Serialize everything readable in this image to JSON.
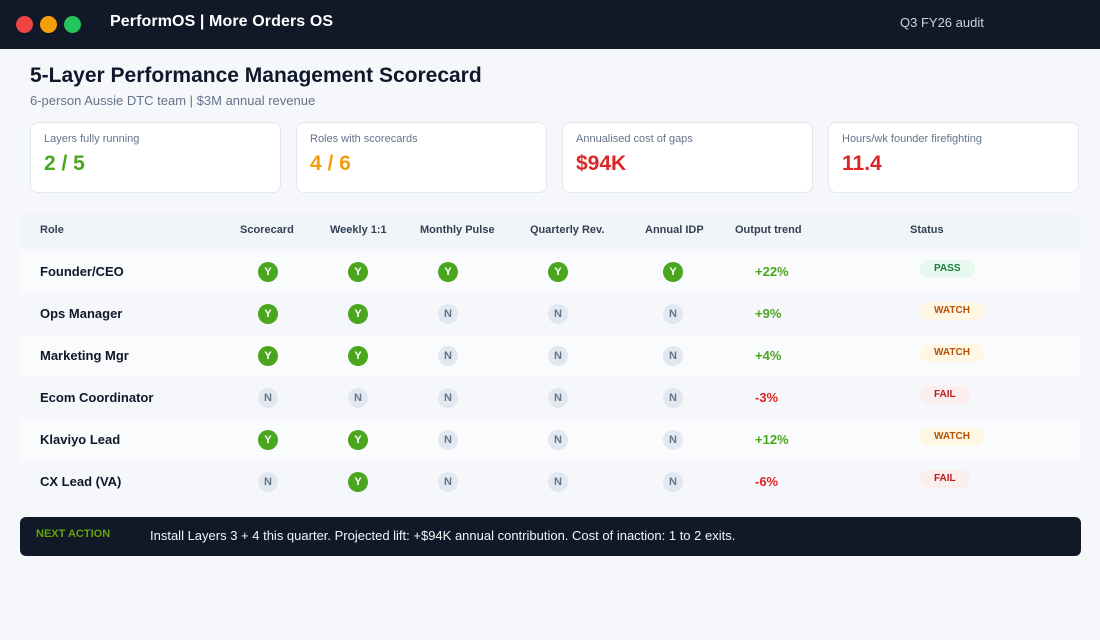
{
  "window": {
    "controls": [
      "close",
      "minimize",
      "maximize"
    ],
    "app_title": "PerformOS  |  More Orders OS",
    "audit_label": "Q3 FY26 audit"
  },
  "header": {
    "title": "5-Layer Performance Management Scorecard",
    "subtitle": "6-person Aussie DTC team  |  $3M annual revenue"
  },
  "kpis": [
    {
      "label": "Layers fully running",
      "value": "2 / 5",
      "color": "#4aa61c"
    },
    {
      "label": "Roles with scorecards",
      "value": "4 / 6",
      "color": "#f59e0b"
    },
    {
      "label": "Annualised cost of gaps",
      "value": "$94K",
      "color": "#dc2626"
    },
    {
      "label": "Hours/wk founder firefighting",
      "value": "11.4",
      "color": "#dc2626"
    }
  ],
  "table": {
    "columns": [
      "Role",
      "Scorecard",
      "Weekly 1:1",
      "Monthly Pulse",
      "Quarterly Rev.",
      "Annual IDP",
      "Output trend",
      "Status"
    ],
    "rows": [
      {
        "role": "Founder/CEO",
        "marks": [
          "Y",
          "Y",
          "Y",
          "Y",
          "Y"
        ],
        "trend": "+22%",
        "trend_dir": "up",
        "status": "PASS",
        "status_kind": "pass"
      },
      {
        "role": "Ops Manager",
        "marks": [
          "Y",
          "Y",
          "N",
          "N",
          "N"
        ],
        "trend": "+9%",
        "trend_dir": "up",
        "status": "WATCH",
        "status_kind": "watch"
      },
      {
        "role": "Marketing Mgr",
        "marks": [
          "Y",
          "Y",
          "N",
          "N",
          "N"
        ],
        "trend": "+4%",
        "trend_dir": "up",
        "status": "WATCH",
        "status_kind": "watch"
      },
      {
        "role": "Ecom Coordinator",
        "marks": [
          "N",
          "N",
          "N",
          "N",
          "N"
        ],
        "trend": "-3%",
        "trend_dir": "down",
        "status": "FAIL",
        "status_kind": "fail"
      },
      {
        "role": "Klaviyo Lead",
        "marks": [
          "Y",
          "Y",
          "N",
          "N",
          "N"
        ],
        "trend": "+12%",
        "trend_dir": "up",
        "status": "WATCH",
        "status_kind": "watch"
      },
      {
        "role": "CX Lead (VA)",
        "marks": [
          "N",
          "Y",
          "N",
          "N",
          "N"
        ],
        "trend": "-6%",
        "trend_dir": "down",
        "status": "FAIL",
        "status_kind": "fail"
      }
    ]
  },
  "next_action": {
    "tag": "NEXT ACTION",
    "text": "Install Layers 3 + 4 this quarter. Projected lift: +$94K annual contribution. Cost of inaction: 1 to 2 exits."
  }
}
